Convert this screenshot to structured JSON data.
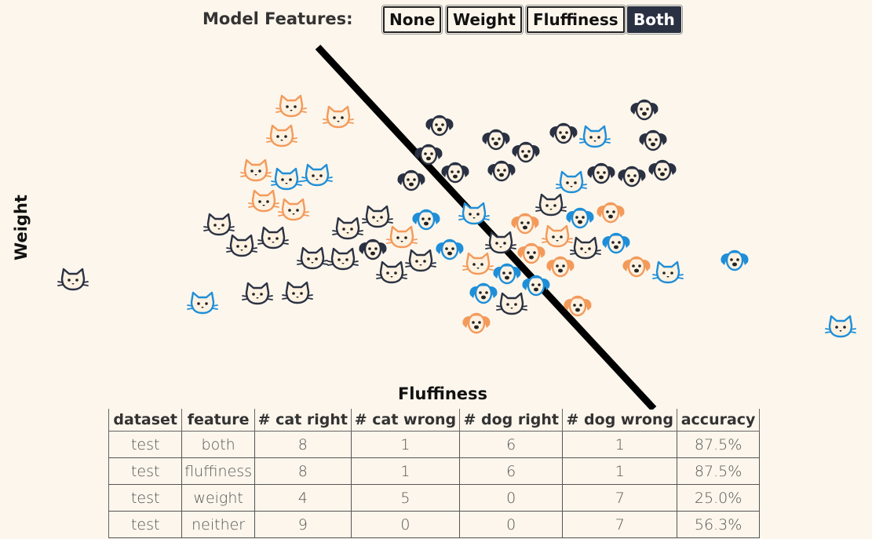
{
  "toolbar": {
    "label": "Model Features:",
    "buttons": [
      {
        "label": "None",
        "active": false
      },
      {
        "label": "Weight",
        "active": false
      },
      {
        "label": "Fluffiness",
        "active": false
      },
      {
        "label": "Both",
        "active": true
      }
    ]
  },
  "axes": {
    "xlabel": "Fluffiness",
    "ylabel": "Weight"
  },
  "colors": {
    "background": "#fcf6ec",
    "dark": "#2a3142",
    "orange": "#f39a5a",
    "blue": "#1f8ed8",
    "boundary": "#000000"
  },
  "table": {
    "headers": [
      "dataset",
      "feature",
      "# cat right",
      "# cat wrong",
      "# dog right",
      "# dog wrong",
      "accuracy"
    ],
    "rows": [
      [
        "test",
        "both",
        "8",
        "1",
        "6",
        "1",
        "87.5%"
      ],
      [
        "test",
        "fluffiness",
        "8",
        "1",
        "6",
        "1",
        "87.5%"
      ],
      [
        "test",
        "weight",
        "4",
        "5",
        "0",
        "7",
        "25.0%"
      ],
      [
        "test",
        "neither",
        "9",
        "0",
        "0",
        "7",
        "56.3%"
      ]
    ]
  }
}
